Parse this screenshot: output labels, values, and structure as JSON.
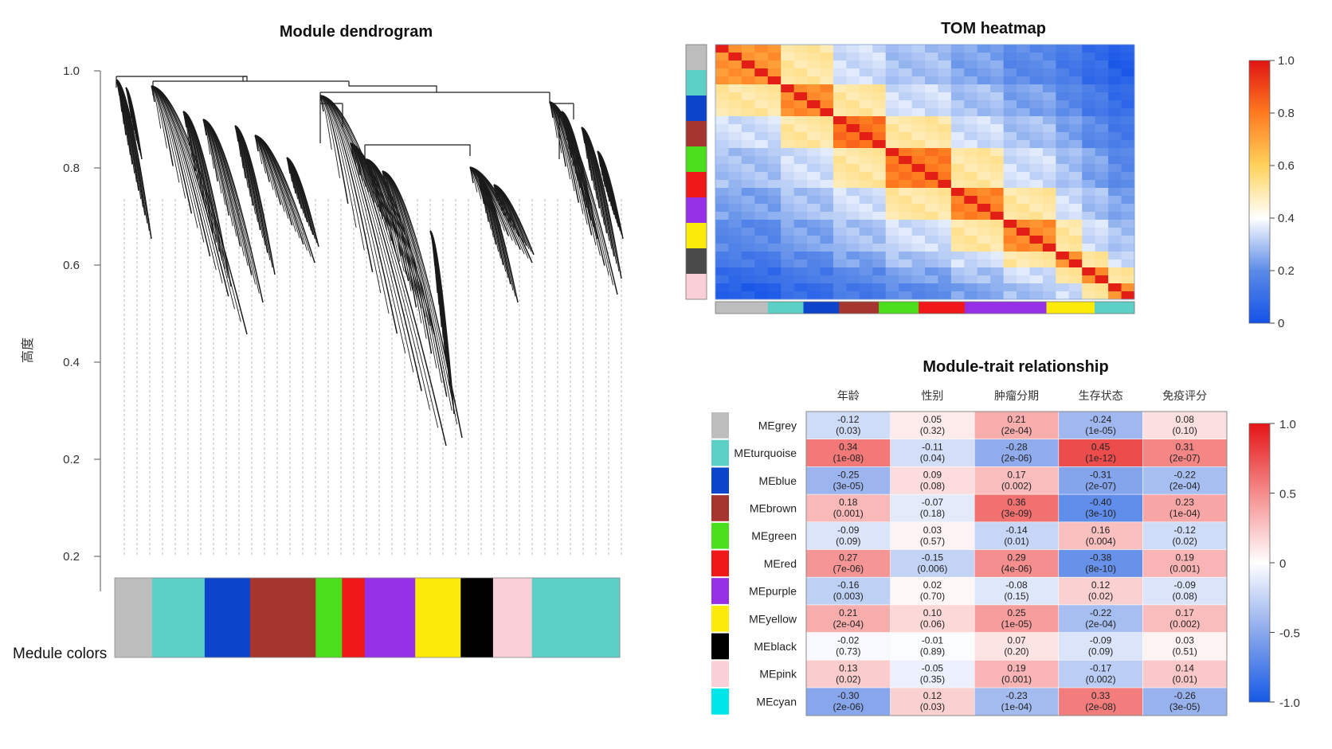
{
  "colors": {
    "grey": "#bdbdbd",
    "turquoise": "#5ccfc7",
    "blue": "#0c45cc",
    "brown": "#a63530",
    "green": "#4ade1c",
    "red": "#f01818",
    "purple": "#9630e6",
    "yellow": "#fcea0a",
    "black": "#000000",
    "darkgrey": "#4a4a4a",
    "pink": "#fbcfd7",
    "cyan": "#00e5e8"
  },
  "chart_data": [
    {
      "type": "dendrogram",
      "title": "Module dendrogram",
      "ylabel": "高度",
      "yticks": [
        "1.0",
        "0.8",
        "0.6",
        "0.4",
        "0.2",
        "0.2"
      ],
      "ylim": [
        0.2,
        1.0
      ],
      "color_bar_label": "Medule colors",
      "color_bar": [
        {
          "color": "grey",
          "fraction": 0.074
        },
        {
          "color": "turquoise",
          "fraction": 0.104
        },
        {
          "color": "blue",
          "fraction": 0.09
        },
        {
          "color": "brown",
          "fraction": 0.13
        },
        {
          "color": "green",
          "fraction": 0.052
        },
        {
          "color": "red",
          "fraction": 0.045
        },
        {
          "color": "purple",
          "fraction": 0.1
        },
        {
          "color": "yellow",
          "fraction": 0.09
        },
        {
          "color": "black",
          "fraction": 0.064
        },
        {
          "color": "pink",
          "fraction": 0.077
        },
        {
          "color": "turquoise",
          "fraction": 0.174
        }
      ]
    },
    {
      "type": "heatmap",
      "title": "TOM heatmap",
      "colorbar_ticks": [
        "1.0",
        "0.8",
        "0.6",
        "0.4",
        "0.2",
        "0"
      ],
      "range": [
        0,
        1
      ],
      "side_modules": [
        "grey",
        "turquoise",
        "blue",
        "brown",
        "green",
        "red",
        "purple",
        "yellow",
        "darkgrey",
        "pink"
      ],
      "bottom_modules": [
        {
          "color": "grey",
          "fraction": 0.125
        },
        {
          "color": "turquoise",
          "fraction": 0.085
        },
        {
          "color": "blue",
          "fraction": 0.085
        },
        {
          "color": "brown",
          "fraction": 0.095
        },
        {
          "color": "green",
          "fraction": 0.095
        },
        {
          "color": "red",
          "fraction": 0.11
        },
        {
          "color": "purple",
          "fraction": 0.195
        },
        {
          "color": "yellow",
          "fraction": 0.115
        },
        {
          "color": "turquoise",
          "fraction": 0.095
        }
      ],
      "blocks": [
        {
          "size": 2,
          "within": 0.78
        },
        {
          "size": 2,
          "within": 0.8
        },
        {
          "size": 2,
          "within": 0.86
        },
        {
          "size": 2,
          "within": 0.84
        },
        {
          "size": 2,
          "within": 0.82
        },
        {
          "size": 2,
          "within": 0.8
        },
        {
          "size": 1,
          "within": 0.78
        },
        {
          "size": 1,
          "within": 0.8
        },
        {
          "size": 1,
          "within": 0.78
        }
      ]
    },
    {
      "type": "table",
      "title": "Module-trait relationship",
      "columns": [
        "年龄",
        "性别",
        "肿瘤分期",
        "生存状态",
        "免疫评分"
      ],
      "rows": [
        {
          "label": "MEgrey",
          "color": "grey",
          "values": [
            -0.12,
            0.05,
            0.21,
            -0.24,
            0.08
          ],
          "pvalues": [
            "(0.03)",
            "(0.32)",
            "(2e-04)",
            "(1e-05)",
            "(0.10)"
          ]
        },
        {
          "label": "MEturquoise",
          "color": "turquoise",
          "values": [
            0.34,
            -0.11,
            -0.28,
            0.45,
            0.31
          ],
          "pvalues": [
            "(1e-08)",
            "(0.04)",
            "(2e-06)",
            "(1e-12)",
            "(2e-07)"
          ]
        },
        {
          "label": "MEblue",
          "color": "blue",
          "values": [
            -0.25,
            0.09,
            0.17,
            -0.31,
            -0.22
          ],
          "pvalues": [
            "(3e-05)",
            "(0.08)",
            "(0.002)",
            "(2e-07)",
            "(2e-04)"
          ]
        },
        {
          "label": "MEbrown",
          "color": "brown",
          "values": [
            0.18,
            -0.07,
            0.36,
            -0.4,
            0.23
          ],
          "pvalues": [
            "(0.001)",
            "(0.18)",
            "(3e-09)",
            "(3e-10)",
            "(1e-04)"
          ]
        },
        {
          "label": "MEgreen",
          "color": "green",
          "values": [
            -0.09,
            0.03,
            -0.14,
            0.16,
            -0.12
          ],
          "pvalues": [
            "(0.09)",
            "(0.57)",
            "(0.01)",
            "(0.004)",
            "(0.02)"
          ]
        },
        {
          "label": "MEred",
          "color": "red",
          "values": [
            0.27,
            -0.15,
            0.29,
            -0.38,
            0.19
          ],
          "pvalues": [
            "(7e-06)",
            "(0.006)",
            "(4e-06)",
            "(8e-10)",
            "(0.001)"
          ]
        },
        {
          "label": "MEpurple",
          "color": "purple",
          "values": [
            -0.16,
            0.02,
            -0.08,
            0.12,
            -0.09
          ],
          "pvalues": [
            "(0.003)",
            "(0.70)",
            "(0.15)",
            "(0.02)",
            "(0.08)"
          ]
        },
        {
          "label": "MEyellow",
          "color": "yellow",
          "values": [
            0.21,
            0.1,
            0.25,
            -0.22,
            0.17
          ],
          "pvalues": [
            "(2e-04)",
            "(0.06)",
            "(1e-05)",
            "(2e-04)",
            "(0.002)"
          ]
        },
        {
          "label": "MEblack",
          "color": "black",
          "values": [
            -0.02,
            -0.01,
            0.07,
            -0.09,
            0.03
          ],
          "pvalues": [
            "(0.73)",
            "(0.89)",
            "(0.20)",
            "(0.09)",
            "(0.51)"
          ]
        },
        {
          "label": "MEpink",
          "color": "pink",
          "values": [
            0.13,
            -0.05,
            0.19,
            -0.17,
            0.14
          ],
          "pvalues": [
            "(0.02)",
            "(0.35)",
            "(0.001)",
            "(0.002)",
            "(0.01)"
          ]
        },
        {
          "label": "MEcyan",
          "color": "cyan",
          "values": [
            -0.3,
            0.12,
            -0.23,
            0.33,
            -0.26
          ],
          "pvalues": [
            "(2e-06)",
            "(0.03)",
            "(1e-04)",
            "(2e-08)",
            "(3e-05)"
          ]
        }
      ],
      "colorbar_ticks": [
        "1.0",
        "0.5",
        "0",
        "-0.5",
        "-1.0"
      ],
      "range": [
        -1,
        1
      ]
    }
  ]
}
